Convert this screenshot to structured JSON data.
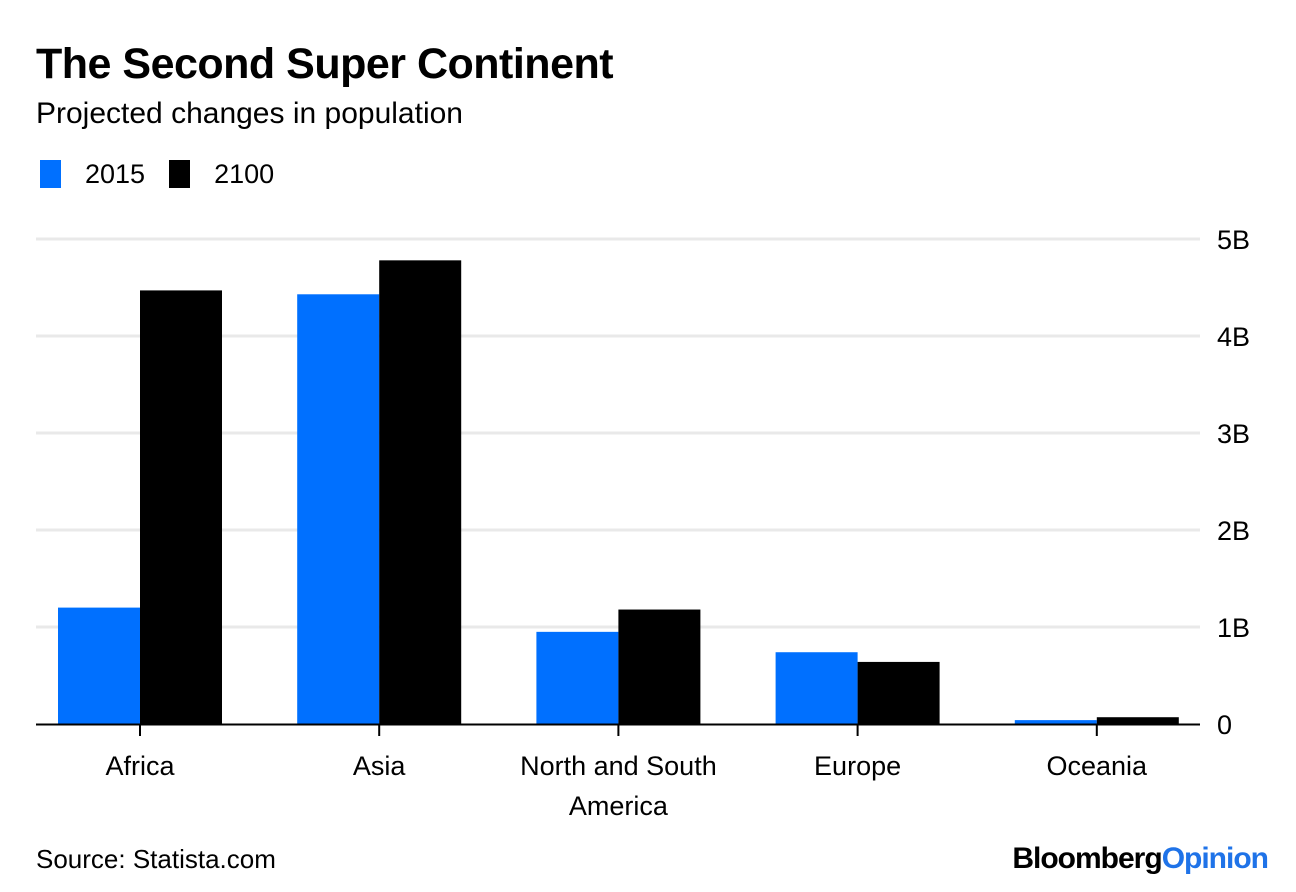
{
  "header": {
    "title": "The Second Super Continent",
    "subtitle": "Projected changes in population"
  },
  "footer": {
    "source": "Source: Statista.com",
    "brand_main": "Bloomberg",
    "brand_accent": "Opinion",
    "brand_accent_color": "#1f73e8"
  },
  "chart_data": {
    "type": "bar",
    "title": "The Second Super Continent",
    "subtitle": "Projected changes in population",
    "xlabel": "",
    "ylabel": "",
    "categories": [
      "Africa",
      "Asia",
      "North and South America",
      "Europe",
      "Oceania"
    ],
    "category_label_lines": [
      [
        "Africa"
      ],
      [
        "Asia"
      ],
      [
        "North and South",
        "America"
      ],
      [
        "Europe"
      ],
      [
        "Oceania"
      ]
    ],
    "series": [
      {
        "name": "2015",
        "color": "#0070ff",
        "values": [
          1.2,
          4.43,
          0.95,
          0.74,
          0.04
        ]
      },
      {
        "name": "2100",
        "color": "#000000",
        "values": [
          4.47,
          4.78,
          1.18,
          0.64,
          0.07
        ]
      }
    ],
    "units": "billions",
    "ylim": [
      0,
      5
    ],
    "yticks": [
      0,
      1,
      2,
      3,
      4,
      5
    ],
    "ytick_labels": [
      "0",
      "1B",
      "2B",
      "3B",
      "4B",
      "5B"
    ],
    "y_axis_side": "right",
    "grid": true,
    "legend_position": "top-left"
  }
}
